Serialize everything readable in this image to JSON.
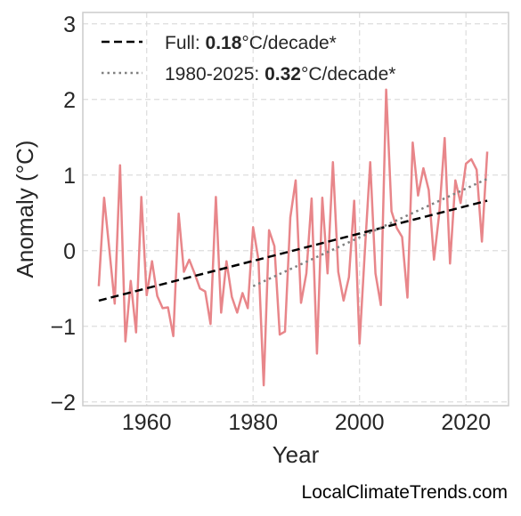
{
  "chart_data": {
    "type": "line",
    "xlabel": "Year",
    "ylabel": "Anomaly (°C)",
    "xlim": [
      1948,
      2028
    ],
    "ylim": [
      -2.05,
      3.15
    ],
    "xticks": [
      1960,
      1980,
      2000,
      2020
    ],
    "xtick_labels": [
      "1960",
      "1980",
      "2000",
      "2020"
    ],
    "yticks": [
      -2,
      -1,
      0,
      1,
      2,
      3
    ],
    "ytick_labels": [
      "−2",
      "−1",
      "0",
      "1",
      "2",
      "3"
    ],
    "grid": true,
    "legend_position": "top-left",
    "series": [
      {
        "style": "solid",
        "color": "#e8868a",
        "x": [
          1951,
          1952,
          1953,
          1954,
          1955,
          1956,
          1957,
          1958,
          1959,
          1960,
          1961,
          1962,
          1963,
          1964,
          1965,
          1966,
          1967,
          1968,
          1969,
          1970,
          1971,
          1972,
          1973,
          1974,
          1975,
          1976,
          1977,
          1978,
          1979,
          1980,
          1981,
          1982,
          1983,
          1984,
          1985,
          1986,
          1987,
          1988,
          1989,
          1990,
          1991,
          1992,
          1993,
          1994,
          1995,
          1996,
          1997,
          1998,
          1999,
          2000,
          2001,
          2002,
          2003,
          2004,
          2005,
          2006,
          2007,
          2008,
          2009,
          2010,
          2011,
          2012,
          2013,
          2014,
          2015,
          2016,
          2017,
          2018,
          2019,
          2020,
          2021,
          2022,
          2023,
          2024
        ],
        "y": [
          -0.47,
          0.7,
          0.0,
          -0.7,
          1.13,
          -1.2,
          -0.4,
          -1.08,
          0.71,
          -0.59,
          -0.14,
          -0.6,
          -0.76,
          -0.75,
          -1.13,
          0.49,
          -0.28,
          -0.12,
          -0.3,
          -0.5,
          -0.54,
          -0.97,
          0.71,
          -0.82,
          -0.14,
          -0.61,
          -0.82,
          -0.56,
          -0.76,
          0.31,
          -0.12,
          -1.78,
          0.27,
          0.06,
          -1.11,
          -1.07,
          0.44,
          0.93,
          -0.69,
          -0.3,
          0.69,
          -1.36,
          0.7,
          -0.3,
          1.17,
          -0.28,
          -0.66,
          -0.35,
          0.66,
          -1.23,
          0.0,
          1.17,
          -0.3,
          -0.72,
          2.13,
          0.52,
          0.3,
          0.18,
          -0.62,
          1.43,
          0.73,
          1.09,
          0.8,
          -0.12,
          0.5,
          1.49,
          -0.17,
          0.93,
          0.63,
          1.15,
          1.21,
          1.07,
          0.12,
          1.31
        ]
      },
      {
        "style": "dashed",
        "color": "#000000",
        "x": [
          1951,
          2024
        ],
        "y": [
          -0.66,
          0.66
        ]
      },
      {
        "style": "dotted",
        "color": "#808080",
        "x": [
          1980,
          2024
        ],
        "y": [
          -0.47,
          0.95
        ]
      }
    ],
    "legend": [
      {
        "style": "dashed",
        "color": "#000000",
        "prefix": "Full: ",
        "value": "0.18",
        "suffix": "°C/decade*"
      },
      {
        "style": "dotted",
        "color": "#808080",
        "prefix": "1980-2025: ",
        "value": "0.32",
        "suffix": "°C/decade*"
      }
    ],
    "credit": "LocalClimateTrends.com"
  }
}
